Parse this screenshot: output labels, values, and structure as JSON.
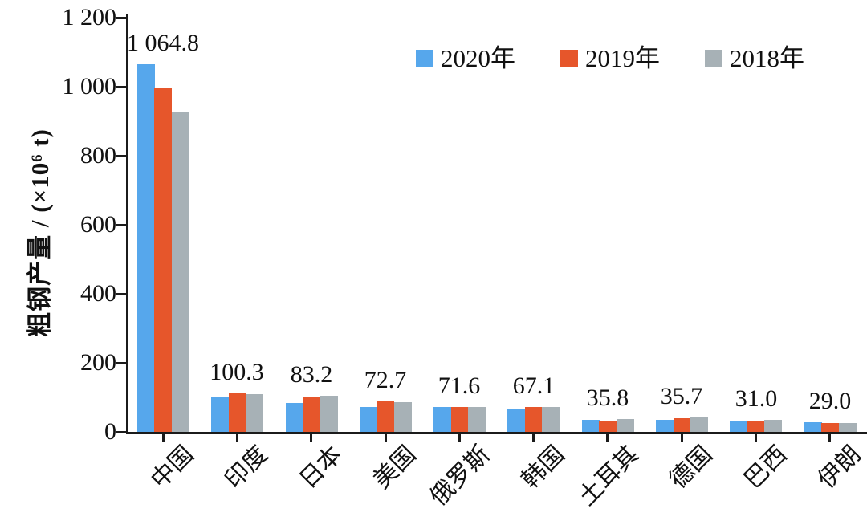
{
  "chart_data": {
    "type": "bar",
    "title": "",
    "ylabel": "粗钢产量 / (×10⁶ t)",
    "xlabel": "",
    "ylim": [
      0,
      1200
    ],
    "grid": false,
    "legend_position": "top",
    "ytick_values": [
      0,
      200,
      400,
      600,
      800,
      1000,
      1200
    ],
    "ytick_labels": [
      "0",
      "200",
      "400",
      "600",
      "800",
      "1 000",
      "1 200"
    ],
    "categories": [
      "中国",
      "印度",
      "日本",
      "美国",
      "俄罗斯",
      "韩国",
      "土耳其",
      "德国",
      "巴西",
      "伊朗"
    ],
    "series": [
      {
        "name": "2020年",
        "color": "#56a7ec",
        "values": [
          1064.8,
          100.3,
          83.2,
          72.7,
          71.6,
          67.1,
          35.8,
          35.7,
          31.0,
          29.0
        ]
      },
      {
        "name": "2019年",
        "color": "#e6562b",
        "values": [
          995.4,
          111.2,
          99.3,
          87.8,
          71.6,
          71.4,
          33.7,
          39.7,
          32.6,
          25.6
        ]
      },
      {
        "name": "2018年",
        "color": "#a7b1b6",
        "values": [
          928.3,
          109.3,
          104.3,
          86.6,
          72.0,
          72.5,
          37.3,
          42.4,
          35.4,
          24.5
        ]
      }
    ],
    "bar_labels": [
      "1 064.8",
      "100.3",
      "83.2",
      "72.7",
      "71.6",
      "67.1",
      "35.8",
      "35.7",
      "31.0",
      "29.0"
    ],
    "colors": {
      "axis": "#1b1b1b",
      "text": "#111111",
      "background": "#ffffff"
    }
  }
}
